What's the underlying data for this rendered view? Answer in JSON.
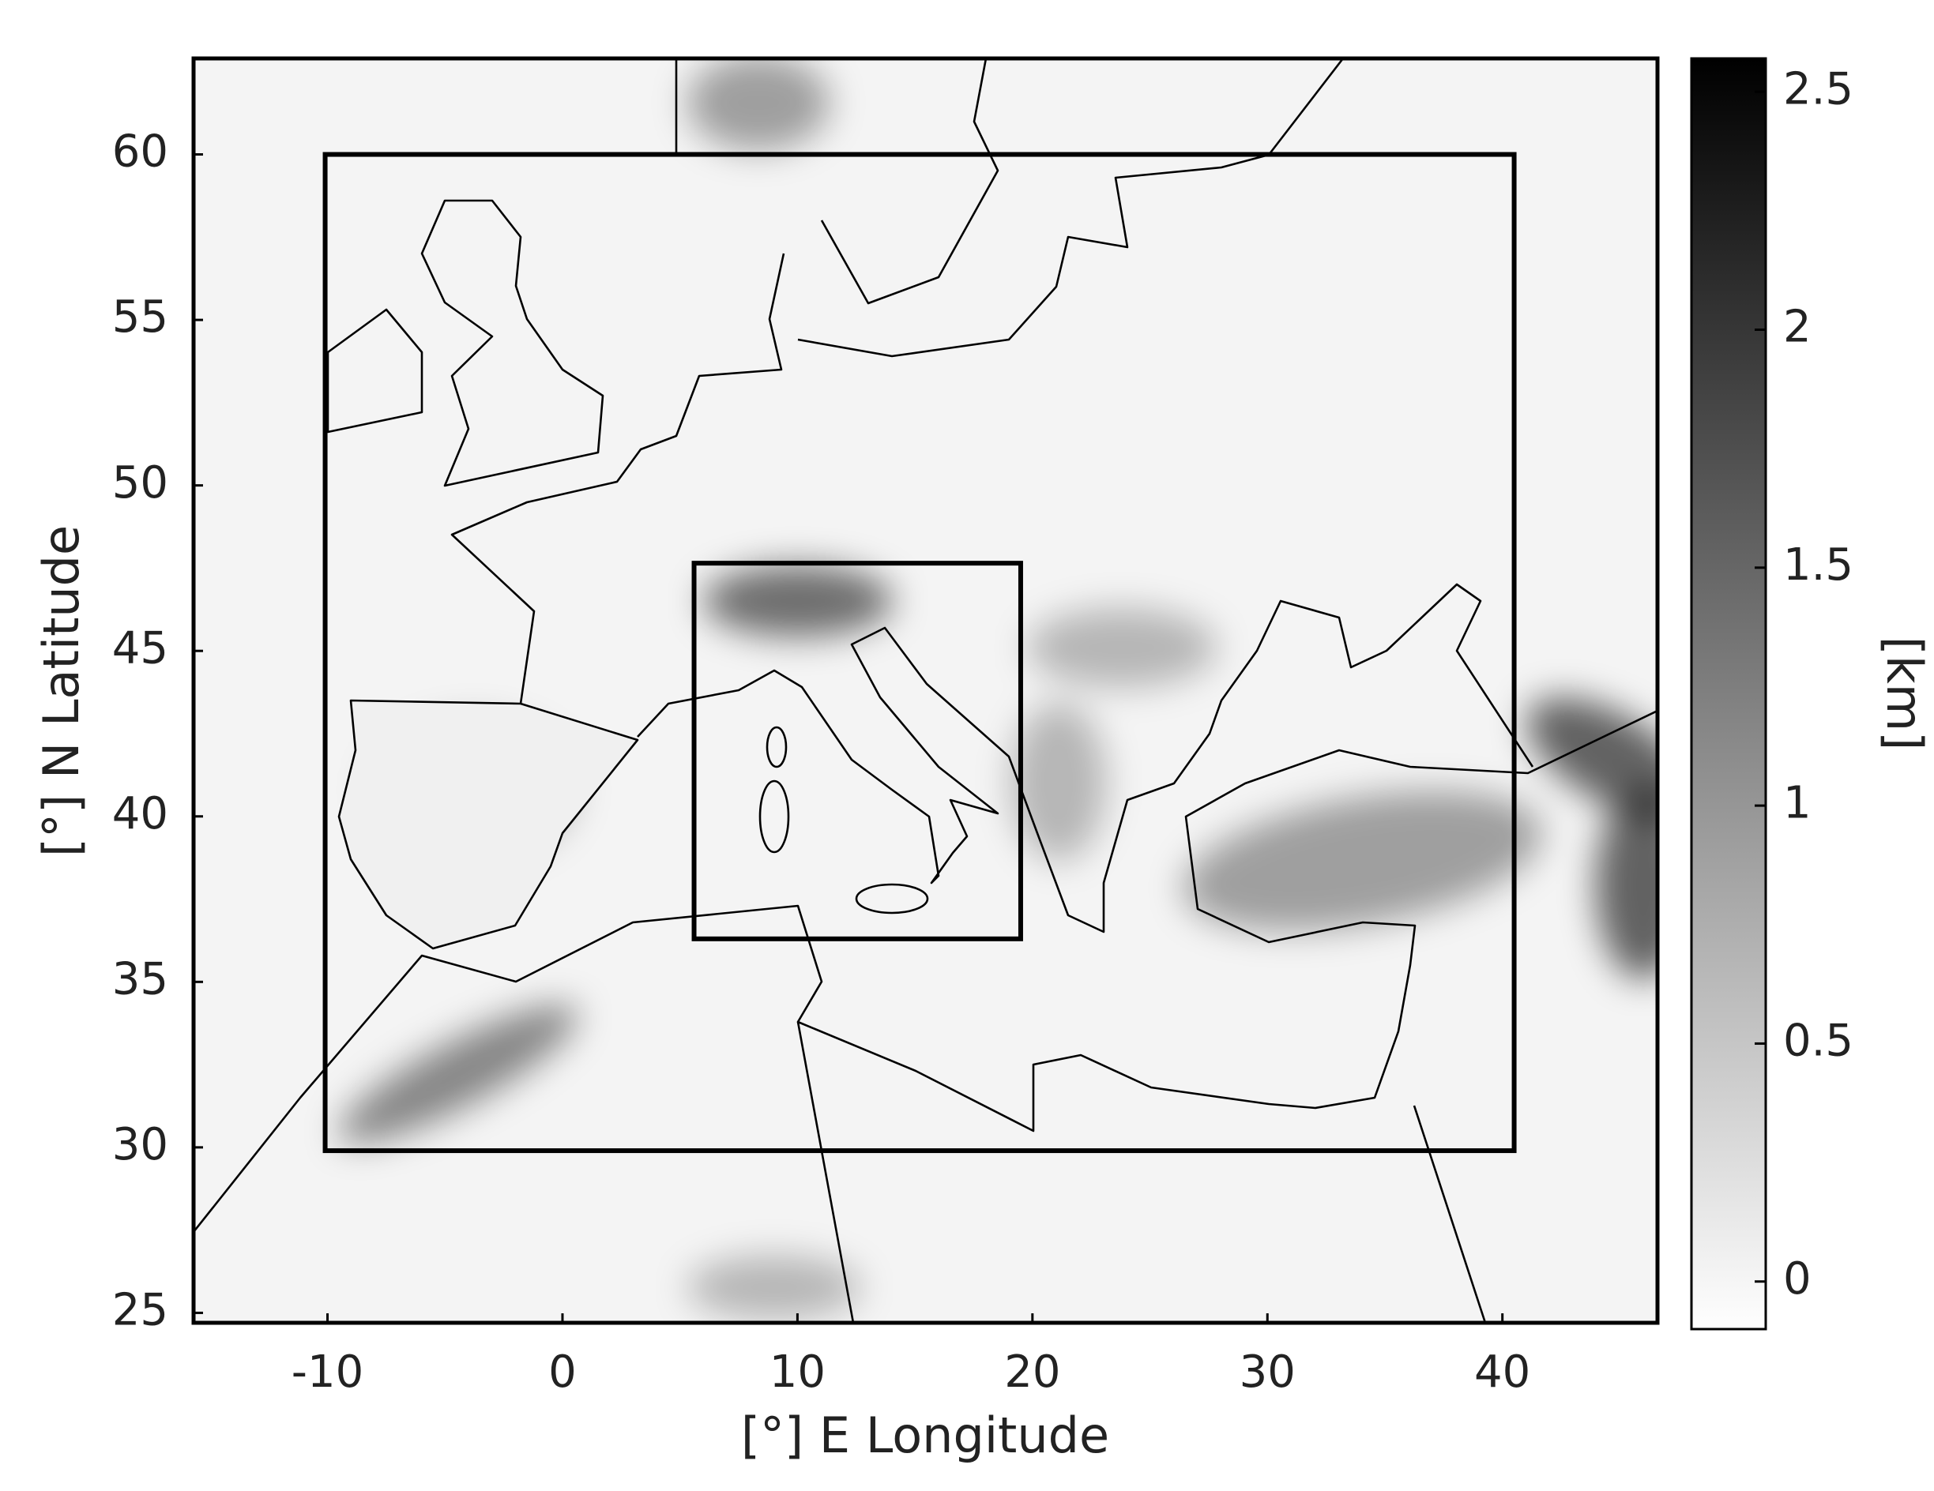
{
  "chart_data": {
    "type": "map",
    "xlabel": "[°] E Longitude",
    "ylabel": "[°] N Latitude",
    "xlim": [
      -15.7,
      46.6
    ],
    "ylim": [
      24.7,
      62.9
    ],
    "xticks": [
      -10,
      0,
      10,
      20,
      30,
      40
    ],
    "yticks": [
      25,
      30,
      35,
      40,
      45,
      50,
      55,
      60
    ],
    "domains": [
      {
        "lon": [
          -10.1,
          40.5
        ],
        "lat": [
          29.9,
          60
        ]
      },
      {
        "lon": [
          5.6,
          19.5
        ],
        "lat": [
          36.3,
          47.65
        ]
      }
    ],
    "colorbar": {
      "label": "[km]",
      "lim": [
        -0.1,
        2.57
      ],
      "ticks": [
        0,
        0.5,
        1,
        1.5,
        2,
        2.5
      ],
      "colors": [
        "#ffffff",
        "#000000"
      ]
    }
  }
}
